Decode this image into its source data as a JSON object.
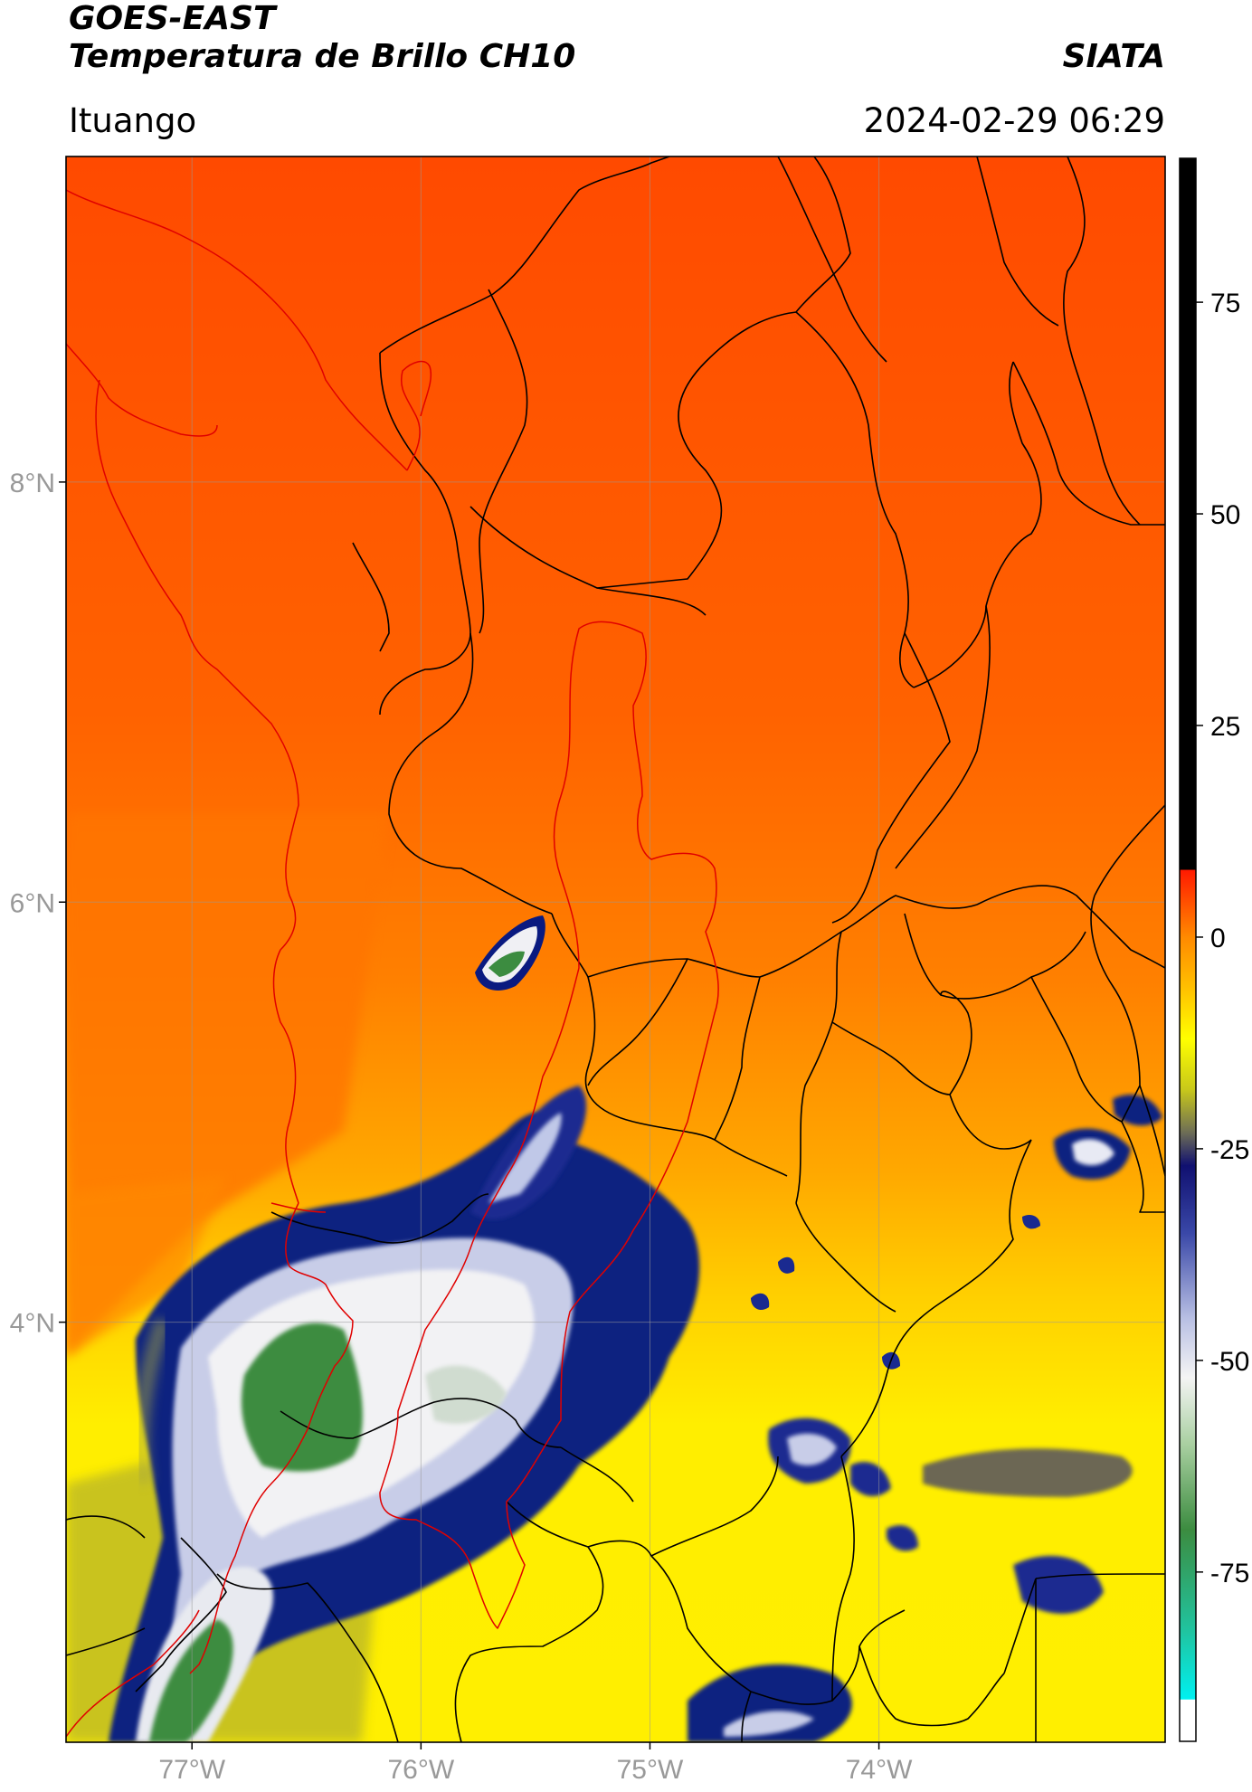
{
  "header": {
    "satellite": "GOES-EAST",
    "product": "Temperatura de Brillo CH10",
    "organization": "SIATA",
    "location": "Ituango",
    "timestamp": "2024-02-29 06:29"
  },
  "map": {
    "lat_range": [
      2.0,
      9.55
    ],
    "lon_range": [
      -77.55,
      -72.75
    ],
    "lat_ticks": [
      {
        "value": 8,
        "label": "8°N"
      },
      {
        "value": 6,
        "label": "6°N"
      },
      {
        "value": 4,
        "label": "4°N"
      }
    ],
    "lon_ticks": [
      {
        "value": -77,
        "label": "77°W"
      },
      {
        "value": -76,
        "label": "76°W"
      },
      {
        "value": -75,
        "label": "75°W"
      },
      {
        "value": -74,
        "label": "74°W"
      }
    ],
    "grid": true,
    "colors": {
      "warm_orange": "#ff5000",
      "orange": "#ff8c00",
      "yellow": "#ffee00",
      "olive": "#a8a830",
      "dark_blue": "#0a1a8a",
      "light_blue": "#b8c0e8",
      "white": "#f4f4f4",
      "green": "#3a8a3a",
      "boundary_black": "#000000",
      "boundary_red": "#e00000"
    }
  },
  "colorbar": {
    "range": [
      -95,
      92
    ],
    "ticks": [
      {
        "value": 75,
        "label": "75"
      },
      {
        "value": 50,
        "label": "50"
      },
      {
        "value": 25,
        "label": "25"
      },
      {
        "value": 0,
        "label": "0"
      },
      {
        "value": -25,
        "label": "-25"
      },
      {
        "value": -50,
        "label": "-50"
      },
      {
        "value": -75,
        "label": "-75"
      }
    ]
  }
}
